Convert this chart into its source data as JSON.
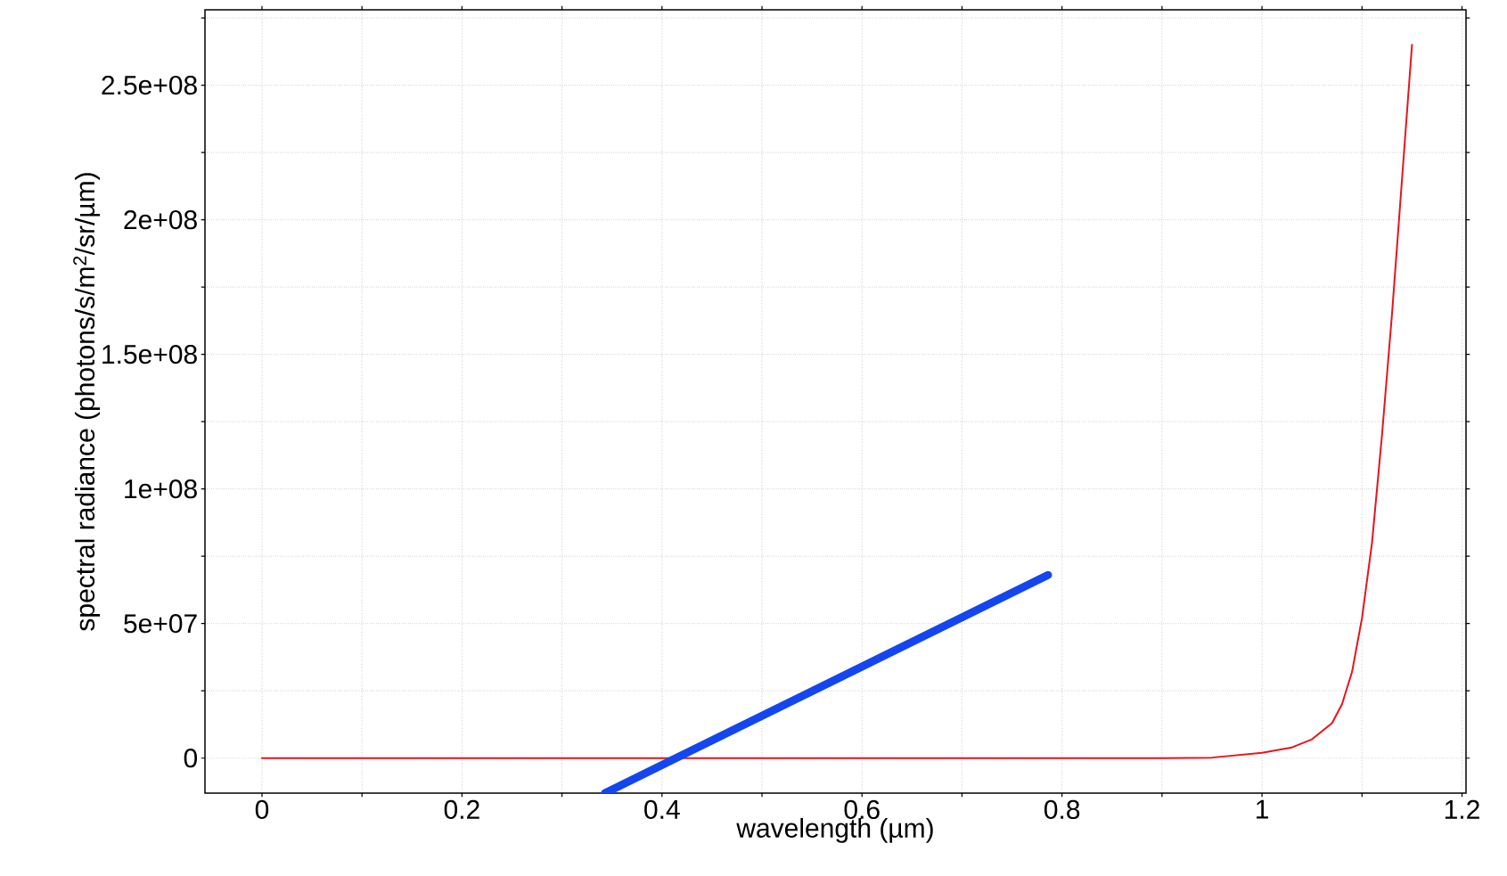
{
  "chart_data": {
    "type": "line",
    "xlabel": "wavelength (µm)",
    "ylabel": "spectral radiance (photons/s/m$^{2}$/sr/µm)",
    "xlim": [
      -0.057,
      1.204
    ],
    "ylim": [
      -13000000,
      278000000
    ],
    "xticks": [
      0,
      {
        "value": 0.1,
        "label": null
      },
      0.2,
      {
        "value": 0.3,
        "label": null
      },
      0.4,
      {
        "value": 0.5,
        "label": null
      },
      0.6,
      {
        "value": 0.7,
        "label": null
      },
      0.8,
      {
        "value": 0.9,
        "label": null
      },
      1,
      {
        "value": 1.1,
        "label": null
      },
      1.2
    ],
    "yticks": [
      {
        "value": 0,
        "label": "0"
      },
      {
        "value": 25000000,
        "label": null
      },
      {
        "value": 50000000,
        "label": "5e+07"
      },
      {
        "value": 75000000,
        "label": null
      },
      {
        "value": 100000000,
        "label": "1e+08"
      },
      {
        "value": 125000000,
        "label": null
      },
      {
        "value": 150000000,
        "label": "1.5e+08"
      },
      {
        "value": 175000000,
        "label": null
      },
      {
        "value": 200000000,
        "label": "2e+08"
      },
      {
        "value": 225000000,
        "label": null
      },
      {
        "value": 250000000,
        "label": "2.5e+08"
      },
      {
        "value": 275000000,
        "label": null
      }
    ],
    "grid": true,
    "series": [
      {
        "color": "#e8141c",
        "x": [
          0,
          0.2,
          0.4,
          0.6,
          0.8,
          0.9,
          0.95,
          1.0,
          1.03,
          1.05,
          1.07,
          1.08,
          1.09,
          1.1,
          1.11,
          1.12,
          1.13,
          1.14,
          1.15
        ],
        "values": [
          0,
          0,
          0,
          0,
          0,
          0,
          200000,
          2000000,
          4000000,
          7000000,
          13000000,
          20000000,
          32000000,
          52000000,
          80000000,
          120000000,
          165000000,
          215000000,
          265000000
        ]
      },
      {
        "color": "#1446f0",
        "type": "line",
        "x": [
          0.343,
          0.786
        ],
        "values": [
          -13000000,
          68000000
        ]
      }
    ]
  }
}
